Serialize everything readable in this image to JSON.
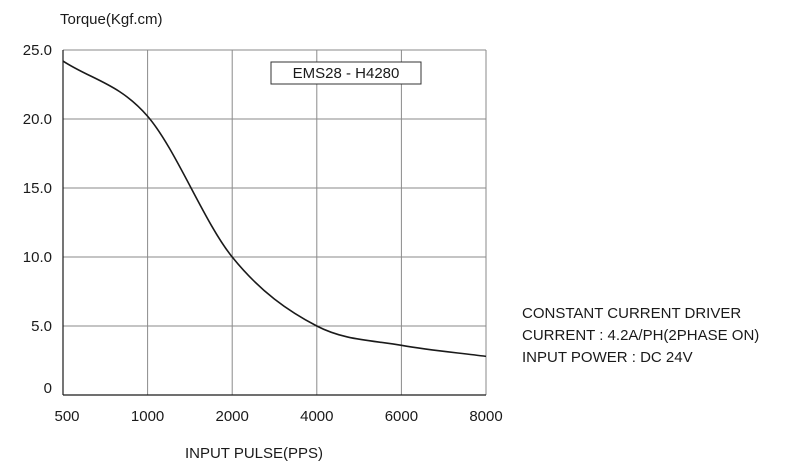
{
  "chart_data": {
    "type": "line",
    "ylabel": "Torque(Kgf.cm)",
    "xlabel": "INPUT PULSE(PPS)",
    "x_categories": [
      "500",
      "1000",
      "2000",
      "4000",
      "6000",
      "8000"
    ],
    "y_ticks": [
      "0",
      "5.0",
      "10.0",
      "15.0",
      "20.0",
      "25.0"
    ],
    "ylim": [
      0,
      25
    ],
    "grid": true,
    "legend_label": "EMS28 - H4280",
    "legend_position": "top-right",
    "series": [
      {
        "color": "#1a1a1a",
        "x": [
          "500",
          "1000",
          "2000",
          "4000",
          "6000",
          "8000"
        ],
        "y": [
          24.2,
          20.2,
          10.0,
          5.0,
          3.6,
          2.8
        ]
      }
    ]
  },
  "notes": {
    "line1": "CONSTANT CURRENT DRIVER",
    "line2": "CURRENT : 4.2A/PH(2PHASE ON)",
    "line3": "INPUT POWER : DC 24V"
  }
}
